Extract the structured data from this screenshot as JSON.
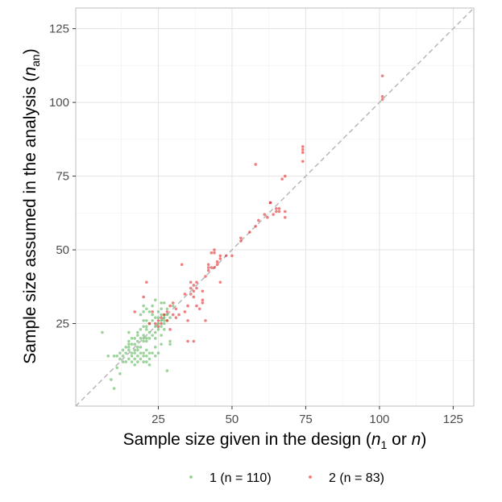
{
  "chart_data": {
    "type": "scatter",
    "xlabel": {
      "main": "Sample size given in the design (",
      "var1": "n",
      "sub1": "1",
      "mid": " or ",
      "var2": "n",
      "end": ")"
    },
    "ylabel": {
      "main": "Sample size assumed in the analysis (",
      "var": "n",
      "sub": "an",
      "end": ")"
    },
    "xlim": [
      -3,
      132
    ],
    "ylim": [
      -3,
      132
    ],
    "x_ticks": [
      25,
      50,
      75,
      100,
      125
    ],
    "y_ticks": [
      25,
      50,
      75,
      100,
      125
    ],
    "x_tick_labels": [
      "25",
      "50",
      "75",
      "100",
      "125"
    ],
    "y_tick_labels": [
      "25",
      "50",
      "75",
      "100",
      "125"
    ],
    "grid": true,
    "reference_line": "y = x",
    "legend_position": "bottom",
    "series": [
      {
        "name": "1 (n = 110)",
        "color": "#4daf4a",
        "points": [
          [
            6,
            22
          ],
          [
            8,
            14
          ],
          [
            9,
            6
          ],
          [
            10,
            3
          ],
          [
            10,
            14
          ],
          [
            11,
            10
          ],
          [
            12,
            13
          ],
          [
            12,
            8
          ],
          [
            13,
            12
          ],
          [
            13,
            14
          ],
          [
            14,
            15
          ],
          [
            14,
            12
          ],
          [
            15,
            22
          ],
          [
            15,
            17
          ],
          [
            15,
            13
          ],
          [
            15,
            19
          ],
          [
            15,
            16
          ],
          [
            16,
            12
          ],
          [
            16,
            14
          ],
          [
            16,
            18
          ],
          [
            16,
            15
          ],
          [
            17,
            11
          ],
          [
            17,
            13
          ],
          [
            17,
            15
          ],
          [
            17,
            16
          ],
          [
            17,
            18
          ],
          [
            18,
            12
          ],
          [
            18,
            14
          ],
          [
            18,
            16
          ],
          [
            18,
            17
          ],
          [
            18,
            19
          ],
          [
            18,
            22
          ],
          [
            19,
            13
          ],
          [
            19,
            15
          ],
          [
            19,
            17
          ],
          [
            19,
            20
          ],
          [
            19,
            28
          ],
          [
            20,
            12
          ],
          [
            20,
            14
          ],
          [
            20,
            15
          ],
          [
            20,
            19
          ],
          [
            20,
            20
          ],
          [
            20,
            21
          ],
          [
            20,
            24
          ],
          [
            20,
            29
          ],
          [
            20,
            31
          ],
          [
            21,
            12
          ],
          [
            21,
            14
          ],
          [
            21,
            16
          ],
          [
            21,
            19
          ],
          [
            21,
            20
          ],
          [
            21,
            23
          ],
          [
            21,
            26
          ],
          [
            21,
            30
          ],
          [
            22,
            13
          ],
          [
            22,
            15
          ],
          [
            22,
            25
          ],
          [
            22,
            11
          ],
          [
            22,
            20
          ],
          [
            22,
            22
          ],
          [
            23,
            15
          ],
          [
            23,
            21
          ],
          [
            23,
            26
          ],
          [
            23,
            28
          ],
          [
            24,
            14
          ],
          [
            24,
            22
          ],
          [
            24,
            24
          ],
          [
            24,
            33
          ],
          [
            25,
            23
          ],
          [
            25,
            25
          ],
          [
            25,
            27
          ],
          [
            26,
            24
          ],
          [
            26,
            26
          ],
          [
            26,
            28
          ],
          [
            26,
            30
          ],
          [
            27,
            25
          ],
          [
            27,
            27
          ],
          [
            27,
            28
          ],
          [
            27,
            32
          ],
          [
            28,
            9
          ],
          [
            28,
            26
          ],
          [
            28,
            28
          ],
          [
            29,
            19
          ],
          [
            29,
            18
          ],
          [
            29,
            27
          ],
          [
            30,
            31
          ],
          [
            23,
            31
          ],
          [
            24,
            27
          ],
          [
            26,
            21
          ],
          [
            27,
            26
          ],
          [
            25,
            29
          ],
          [
            24,
            20
          ],
          [
            22,
            29
          ],
          [
            26,
            32
          ],
          [
            21,
            24
          ],
          [
            20,
            26
          ],
          [
            19,
            23
          ],
          [
            18,
            21
          ],
          [
            17,
            20
          ],
          [
            16,
            20
          ],
          [
            15,
            18
          ],
          [
            14,
            17
          ],
          [
            13,
            16
          ],
          [
            12,
            15
          ],
          [
            11,
            14
          ],
          [
            24,
            17
          ],
          [
            25,
            15
          ],
          [
            26,
            18
          ],
          [
            27,
            23
          ],
          [
            28,
            30
          ]
        ]
      },
      {
        "name": "2 (n = 83)",
        "color": "#e41a1c",
        "points": [
          [
            17,
            29
          ],
          [
            20,
            34
          ],
          [
            21,
            39
          ],
          [
            22,
            25
          ],
          [
            23,
            29
          ],
          [
            24,
            25
          ],
          [
            25,
            24
          ],
          [
            25,
            26
          ],
          [
            26,
            25
          ],
          [
            26,
            27
          ],
          [
            27,
            28
          ],
          [
            28,
            29
          ],
          [
            28,
            26
          ],
          [
            29,
            31
          ],
          [
            30,
            32
          ],
          [
            31,
            30
          ],
          [
            32,
            28
          ],
          [
            33,
            45
          ],
          [
            34,
            29
          ],
          [
            35,
            31
          ],
          [
            35,
            19
          ],
          [
            35,
            26
          ],
          [
            36,
            35
          ],
          [
            36,
            39
          ],
          [
            37,
            19
          ],
          [
            37,
            36
          ],
          [
            37,
            38
          ],
          [
            38,
            31
          ],
          [
            38,
            37
          ],
          [
            38,
            39
          ],
          [
            40,
            36
          ],
          [
            40,
            33
          ],
          [
            40,
            32
          ],
          [
            41,
            26
          ],
          [
            41,
            41
          ],
          [
            42,
            43
          ],
          [
            42,
            45
          ],
          [
            42,
            44
          ],
          [
            43,
            44
          ],
          [
            43,
            49
          ],
          [
            44,
            44
          ],
          [
            44,
            50
          ],
          [
            44,
            49
          ],
          [
            45,
            46
          ],
          [
            45,
            45
          ],
          [
            46,
            48
          ],
          [
            46,
            47
          ],
          [
            46,
            39
          ],
          [
            48,
            48
          ],
          [
            50,
            48
          ],
          [
            53,
            54
          ],
          [
            53,
            53
          ],
          [
            56,
            56
          ],
          [
            58,
            58
          ],
          [
            58,
            79
          ],
          [
            59,
            60
          ],
          [
            61,
            62
          ],
          [
            62,
            61
          ],
          [
            63,
            66
          ],
          [
            63,
            66
          ],
          [
            64,
            62
          ],
          [
            65,
            63
          ],
          [
            65,
            64
          ],
          [
            66,
            64
          ],
          [
            66,
            63
          ],
          [
            67,
            74
          ],
          [
            68,
            61
          ],
          [
            68,
            75
          ],
          [
            68,
            63
          ],
          [
            74,
            80
          ],
          [
            74,
            83
          ],
          [
            74,
            85
          ],
          [
            74,
            84
          ],
          [
            101,
            109
          ],
          [
            101,
            102
          ],
          [
            101,
            101
          ],
          [
            39,
            30
          ],
          [
            31,
            27
          ],
          [
            29,
            23
          ],
          [
            34,
            35
          ],
          [
            36,
            37
          ],
          [
            30,
            28
          ],
          [
            37,
            34
          ]
        ]
      }
    ]
  }
}
